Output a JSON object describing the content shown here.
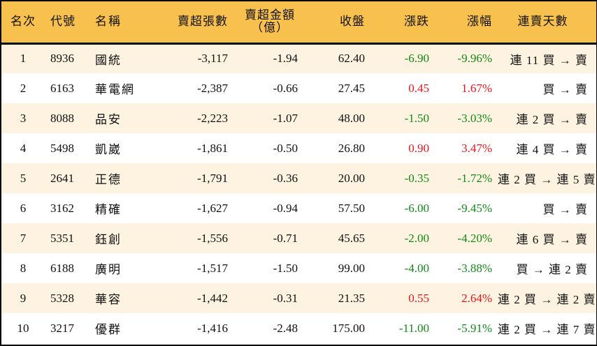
{
  "table": {
    "headers": {
      "rank": "名次",
      "code": "代號",
      "name": "名稱",
      "net_sell_lots": "賣超張數",
      "net_sell_amount_line1": "賣超金額",
      "net_sell_amount_line2": "（億）",
      "close": "收盤",
      "change": "漲跌",
      "change_pct": "漲幅",
      "streak": "連賣天數"
    },
    "colors": {
      "header_bg": "#f8c04c",
      "row_odd_bg": "#fdf3e0",
      "row_even_bg": "#ffffff",
      "up": "#e8141c",
      "down": "#128a1a"
    },
    "rows": [
      {
        "rank": "1",
        "code": "8936",
        "name": "國統",
        "lots": "-3,117",
        "amount": "-1.94",
        "close": "62.40",
        "change": "-6.90",
        "pct": "-9.96%",
        "dir": "down",
        "streak": "連 11 買 → 賣"
      },
      {
        "rank": "2",
        "code": "6163",
        "name": "華電網",
        "lots": "-2,387",
        "amount": "-0.66",
        "close": "27.45",
        "change": "0.45",
        "pct": "1.67%",
        "dir": "up",
        "streak": "買 → 賣"
      },
      {
        "rank": "3",
        "code": "8088",
        "name": "品安",
        "lots": "-2,223",
        "amount": "-1.07",
        "close": "48.00",
        "change": "-1.50",
        "pct": "-3.03%",
        "dir": "down",
        "streak": "連 2 買 → 賣"
      },
      {
        "rank": "4",
        "code": "5498",
        "name": "凱崴",
        "lots": "-1,861",
        "amount": "-0.50",
        "close": "26.80",
        "change": "0.90",
        "pct": "3.47%",
        "dir": "up",
        "streak": "連 4 買 → 賣"
      },
      {
        "rank": "5",
        "code": "2641",
        "name": "正德",
        "lots": "-1,791",
        "amount": "-0.36",
        "close": "20.00",
        "change": "-0.35",
        "pct": "-1.72%",
        "dir": "down",
        "streak": "連 2 買 → 連 5 賣"
      },
      {
        "rank": "6",
        "code": "3162",
        "name": "精確",
        "lots": "-1,627",
        "amount": "-0.94",
        "close": "57.50",
        "change": "-6.00",
        "pct": "-9.45%",
        "dir": "down",
        "streak": "買 → 賣"
      },
      {
        "rank": "7",
        "code": "5351",
        "name": "鈺創",
        "lots": "-1,556",
        "amount": "-0.71",
        "close": "45.65",
        "change": "-2.00",
        "pct": "-4.20%",
        "dir": "down",
        "streak": "連 6 買 → 賣"
      },
      {
        "rank": "8",
        "code": "6188",
        "name": "廣明",
        "lots": "-1,517",
        "amount": "-1.50",
        "close": "99.00",
        "change": "-4.00",
        "pct": "-3.88%",
        "dir": "down",
        "streak": "買 → 連 2 賣"
      },
      {
        "rank": "9",
        "code": "5328",
        "name": "華容",
        "lots": "-1,442",
        "amount": "-0.31",
        "close": "21.35",
        "change": "0.55",
        "pct": "2.64%",
        "dir": "up",
        "streak": "連 2 買 → 連 2 賣"
      },
      {
        "rank": "10",
        "code": "3217",
        "name": "優群",
        "lots": "-1,416",
        "amount": "-2.48",
        "close": "175.00",
        "change": "-11.00",
        "pct": "-5.91%",
        "dir": "down",
        "streak": "連 2 買 → 連 7 賣"
      }
    ]
  }
}
